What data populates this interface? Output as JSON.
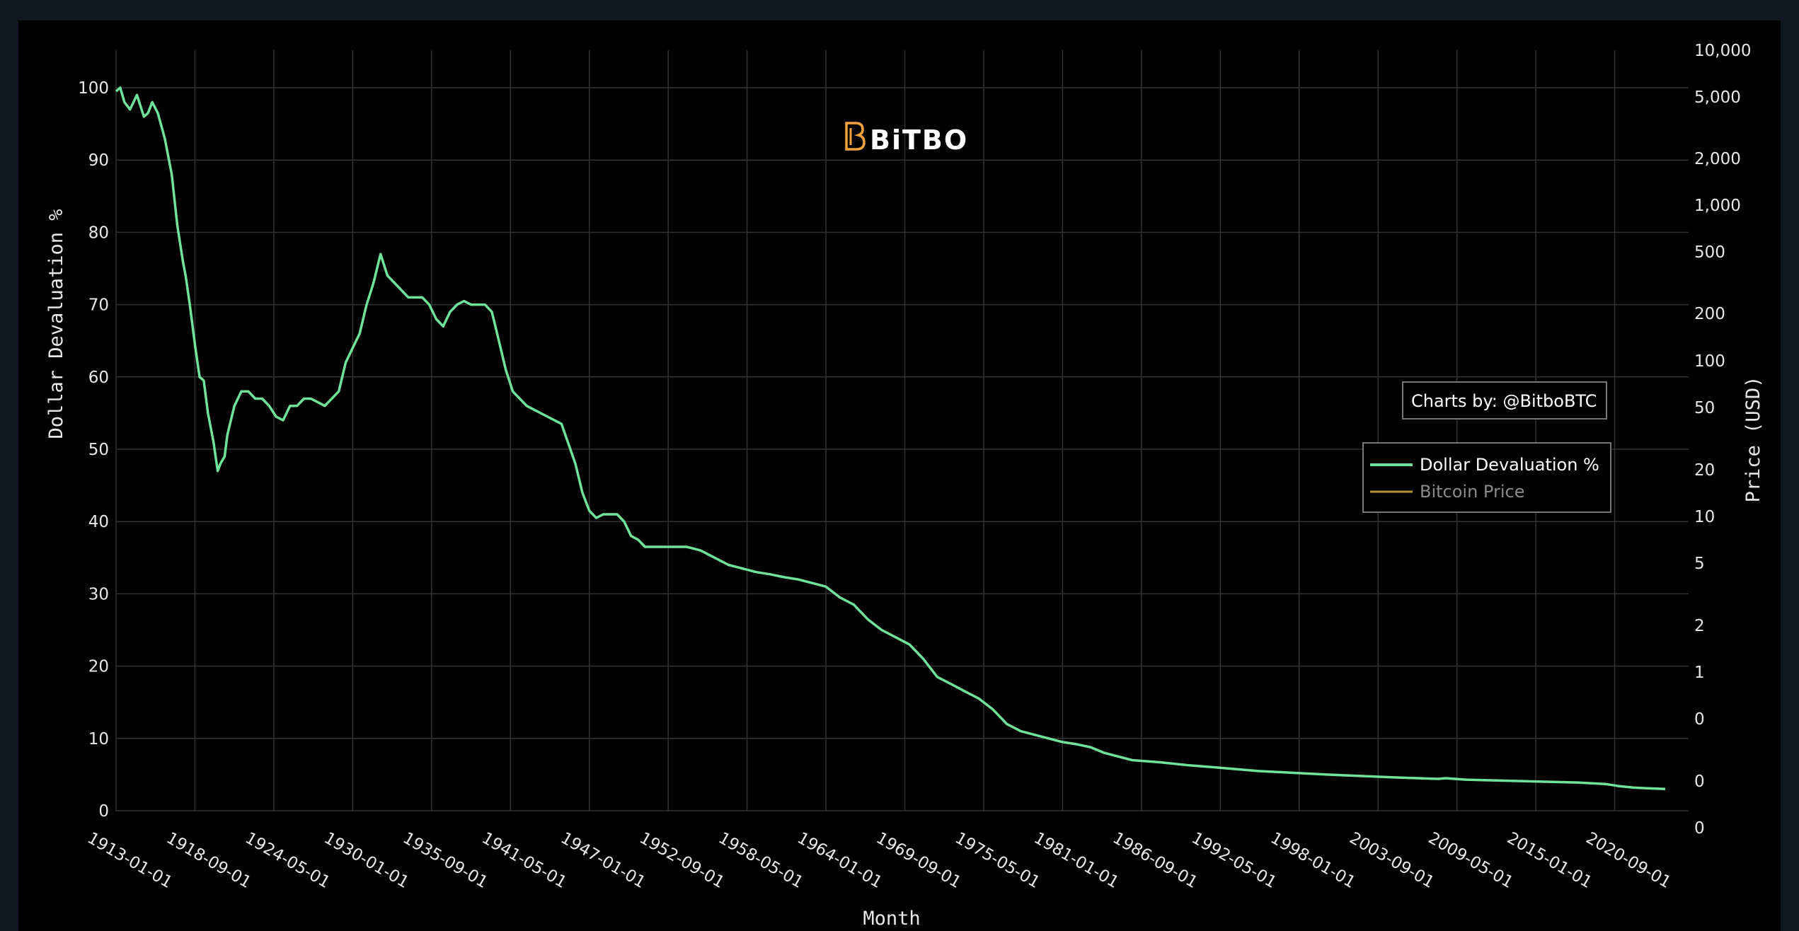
{
  "chart_data": {
    "type": "line",
    "xlabel": "Month",
    "ylabel": "Dollar Devaluation %",
    "y2label": "Price (USD)",
    "ylim": [
      0,
      100
    ],
    "yticks": [
      "0",
      "10",
      "20",
      "30",
      "40",
      "50",
      "60",
      "70",
      "80",
      "90",
      "100"
    ],
    "y2ticks": [
      "10,000",
      "5,000",
      "2,000",
      "1,000",
      "500",
      "200",
      "100",
      "50",
      "20",
      "10",
      "5",
      "2",
      "1",
      "0",
      "0",
      "0"
    ],
    "y2_scale": "log",
    "xticks": [
      "1913-01-01",
      "1918-09-01",
      "1924-05-01",
      "1930-01-01",
      "1935-09-01",
      "1941-05-01",
      "1947-01-01",
      "1952-09-01",
      "1958-05-01",
      "1964-01-01",
      "1969-09-01",
      "1975-05-01",
      "1981-01-01",
      "1986-09-01",
      "1992-05-01",
      "1998-01-01",
      "2003-09-01",
      "2009-05-01",
      "2015-01-01",
      "2020-09-01"
    ],
    "grid": true,
    "legend_position": "right",
    "series": [
      {
        "name": "Dollar Devaluation %",
        "color": "#6fe39a",
        "x": [
          1913.0,
          1913.3,
          1913.6,
          1914.0,
          1914.5,
          1915.0,
          1915.3,
          1915.6,
          1916.0,
          1916.5,
          1917.0,
          1917.4,
          1917.8,
          1918.0,
          1918.3,
          1918.7,
          1919.0,
          1919.3,
          1919.6,
          1920.0,
          1920.3,
          1920.5,
          1920.8,
          1921.0,
          1921.5,
          1922.0,
          1922.5,
          1923.0,
          1923.5,
          1924.0,
          1924.5,
          1925.0,
          1925.5,
          1926.0,
          1926.5,
          1927.0,
          1927.5,
          1928.0,
          1928.5,
          1929.0,
          1929.5,
          1930.0,
          1930.5,
          1931.0,
          1931.5,
          1932.0,
          1932.5,
          1933.0,
          1933.5,
          1934.0,
          1934.3,
          1934.6,
          1935.0,
          1935.5,
          1936.0,
          1936.5,
          1937.0,
          1937.5,
          1938.0,
          1938.5,
          1939.0,
          1939.5,
          1940.0,
          1940.5,
          1941.0,
          1941.5,
          1942.0,
          1942.5,
          1943.0,
          1944.0,
          1945.0,
          1946.0,
          1946.5,
          1946.8,
          1947.0,
          1947.5,
          1948.0,
          1948.5,
          1949.0,
          1949.5,
          1950.0,
          1950.5,
          1951.0,
          1951.5,
          1952.0,
          1953.0,
          1954.0,
          1955.0,
          1956.0,
          1957.0,
          1958.0,
          1959.0,
          1960.0,
          1961.0,
          1962.0,
          1963.0,
          1964.0,
          1965.0,
          1966.0,
          1967.0,
          1968.0,
          1969.0,
          1970.0,
          1971.0,
          1972.0,
          1973.0,
          1974.0,
          1975.0,
          1976.0,
          1977.0,
          1978.0,
          1979.0,
          1980.0,
          1981.0,
          1982.0,
          1983.0,
          1984.0,
          1986.0,
          1988.0,
          1990.0,
          1992.0,
          1995.0,
          2000.0,
          2005.0,
          2008.0,
          2008.5,
          2010.0,
          2014.0,
          2018.0,
          2020.0,
          2021.0,
          2022.0,
          2023.0,
          2024.3
        ],
        "y": [
          99.5,
          100,
          98,
          97,
          99,
          96,
          96.5,
          98,
          96.5,
          93,
          88,
          81,
          76,
          74,
          70,
          64,
          60,
          59.5,
          55,
          51,
          47,
          48,
          49,
          52,
          56,
          58,
          58,
          57,
          57,
          56,
          54.5,
          54,
          56,
          56,
          57,
          57,
          56.5,
          56,
          57,
          58,
          62,
          64,
          66,
          70,
          73,
          77,
          74,
          73,
          72,
          71,
          71,
          71,
          71,
          70,
          68,
          67,
          69,
          70,
          70.5,
          70,
          70,
          70,
          69,
          65,
          61,
          58,
          57,
          56,
          55.5,
          54.5,
          53.5,
          48,
          44,
          42.5,
          41.5,
          40.5,
          41,
          41,
          41,
          40,
          38,
          37.5,
          36.5,
          36.5,
          36.5,
          36.5,
          36.5,
          36,
          35,
          34,
          33.5,
          33,
          32.7,
          32.3,
          32,
          31.5,
          31,
          29.5,
          28.5,
          26.5,
          25,
          24,
          23,
          21,
          18.5,
          17.5,
          16.5,
          15.5,
          14,
          12,
          11,
          10.5,
          10,
          9.5,
          9.2,
          8.8,
          8,
          7,
          6.7,
          6.3,
          6,
          5.5,
          5.0,
          4.6,
          4.4,
          4.5,
          4.3,
          4.1,
          3.9,
          3.7,
          3.4,
          3.2,
          3.1,
          3.0
        ]
      },
      {
        "name": "Bitcoin Price",
        "color": "#b8912f"
      }
    ],
    "annotation": "Charts by: @BitboBTC",
    "logo": "BiTBO"
  }
}
